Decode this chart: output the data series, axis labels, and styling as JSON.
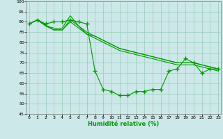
{
  "title": "",
  "xlabel": "Humidité relative (%)",
  "ylabel": "",
  "bg_color": "#cce8e8",
  "grid_color": "#99ccbb",
  "line_color": "#009900",
  "xlim": [
    0,
    23
  ],
  "ylim": [
    45,
    100
  ],
  "yticks": [
    45,
    50,
    55,
    60,
    65,
    70,
    75,
    80,
    85,
    90,
    95,
    100
  ],
  "xtick_labels": [
    "0",
    "1",
    "2",
    "3",
    "4",
    "5",
    "6",
    "7",
    "8",
    "9",
    "10",
    "11",
    "12",
    "13",
    "14",
    "15",
    "16",
    "17",
    "18",
    "19",
    "20",
    "21",
    "22",
    "23"
  ],
  "series": [
    {
      "x": [
        0,
        1,
        2,
        3,
        4,
        5,
        6,
        7,
        8,
        9,
        10,
        11,
        12,
        13,
        14,
        15,
        16,
        17,
        18,
        19,
        20,
        21,
        22,
        23
      ],
      "y": [
        89,
        91,
        89,
        90,
        90,
        91,
        90,
        89,
        66,
        57,
        56,
        54,
        54,
        56,
        56,
        57,
        57,
        66,
        67,
        72,
        70,
        65,
        67,
        67
      ],
      "marker": true
    },
    {
      "x": [
        0,
        1,
        3,
        4,
        5,
        6,
        7,
        8,
        9,
        10,
        11,
        12,
        13,
        14,
        15,
        16,
        17,
        18,
        19,
        20,
        21,
        22,
        23
      ],
      "y": [
        89,
        91,
        86,
        87,
        93,
        88,
        84,
        83,
        81,
        79,
        77,
        76,
        75,
        74,
        73,
        72,
        71,
        70,
        70,
        70,
        69,
        68,
        67
      ],
      "marker": false
    },
    {
      "x": [
        0,
        1,
        2,
        3,
        4,
        5,
        6,
        7,
        8,
        9,
        10,
        11,
        12,
        13,
        14,
        15,
        16,
        17,
        18,
        19,
        20,
        21,
        22,
        23
      ],
      "y": [
        89,
        91,
        88,
        86,
        86,
        91,
        88,
        85,
        83,
        81,
        79,
        77,
        76,
        75,
        74,
        73,
        72,
        71,
        70,
        70,
        70,
        69,
        68,
        67
      ],
      "marker": false
    },
    {
      "x": [
        0,
        1,
        2,
        3,
        4,
        5,
        6,
        7,
        8,
        9,
        10,
        11,
        12,
        13,
        14,
        15,
        16,
        17,
        18,
        19,
        20,
        21,
        22,
        23
      ],
      "y": [
        89,
        91,
        88,
        87,
        86,
        90,
        87,
        84,
        82,
        80,
        78,
        76,
        75,
        74,
        73,
        72,
        71,
        70,
        69,
        69,
        69,
        68,
        67,
        66
      ],
      "marker": false
    }
  ]
}
